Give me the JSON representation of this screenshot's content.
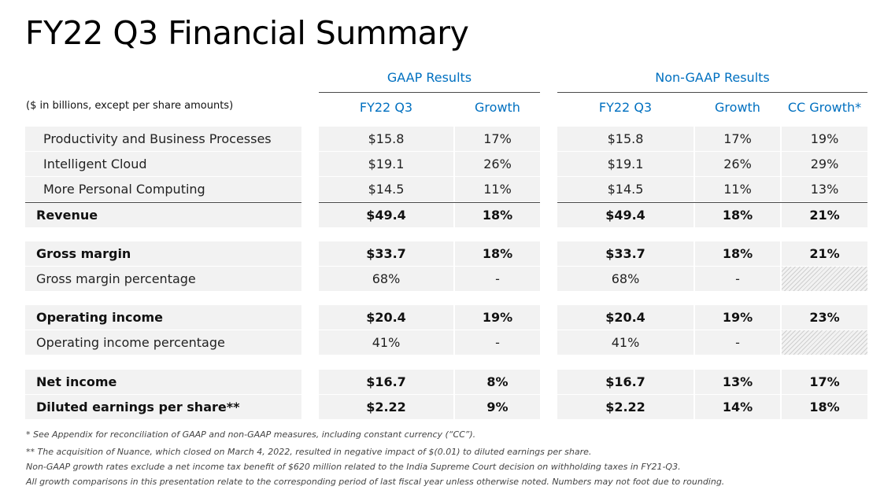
{
  "title": "FY22 Q3 Financial Summary",
  "units_note": "($ in billions, except per share amounts)",
  "gaap_header": "GAAP Results",
  "nongaap_header": "Non-GAAP Results",
  "columns": [
    "FY22 Q3",
    "Growth",
    "FY22 Q3",
    "Growth",
    "CC Growth*"
  ],
  "rows": [
    {
      "label": "Productivity and Business Processes",
      "values": [
        "$15.8",
        "17%",
        "$15.8",
        "17%",
        "19%"
      ]
    },
    {
      "label": "Intelligent Cloud",
      "values": [
        "$19.1",
        "26%",
        "$19.1",
        "26%",
        "29%"
      ]
    },
    {
      "label": "More Personal Computing",
      "values": [
        "$14.5",
        "11%",
        "$14.5",
        "11%",
        "13%"
      ]
    },
    {
      "label": "Revenue",
      "values": [
        "$49.4",
        "18%",
        "$49.4",
        "18%",
        "21%"
      ]
    },
    {
      "label": "Gross margin",
      "values": [
        "$33.7",
        "18%",
        "$33.7",
        "18%",
        "21%"
      ]
    },
    {
      "label": "Gross margin percentage",
      "values": [
        "68%",
        "-",
        "68%",
        "-",
        ""
      ]
    },
    {
      "label": "Operating income",
      "values": [
        "$20.4",
        "19%",
        "$20.4",
        "19%",
        "23%"
      ]
    },
    {
      "label": "Operating income percentage",
      "values": [
        "41%",
        "-",
        "41%",
        "-",
        ""
      ]
    },
    {
      "label": "Net income",
      "values": [
        "$16.7",
        "8%",
        "$16.7",
        "13%",
        "17%"
      ]
    },
    {
      "label": "Diluted earnings per share**",
      "values": [
        "$2.22",
        "9%",
        "$2.22",
        "14%",
        "18%"
      ]
    }
  ],
  "footnotes": [
    "* See Appendix for reconciliation of GAAP and non-GAAP measures, including constant currency (“CC”).",
    "** The acquisition of Nuance, which closed on March 4, 2022, resulted in negative impact of $(0.01) to diluted earnings per share.",
    "Non-GAAP growth rates exclude a net income tax benefit of $620 million related to the India Supreme Court decision on withholding taxes in FY21-Q3.",
    "All growth comparisons in this presentation relate to the corresponding period of last fiscal year unless otherwise noted. Numbers may not foot due to rounding."
  ]
}
